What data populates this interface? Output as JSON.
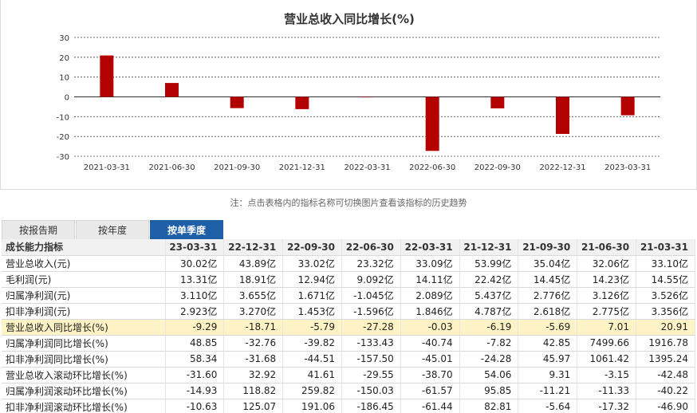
{
  "chart_data": {
    "type": "bar",
    "title": "营业总收入同比增长(%)",
    "categories": [
      "2021-03-31",
      "2021-06-30",
      "2021-09-30",
      "2021-12-31",
      "2022-03-31",
      "2022-06-30",
      "2022-09-30",
      "2022-12-31",
      "2023-03-31"
    ],
    "values": [
      20.91,
      7.01,
      -5.69,
      -6.19,
      -0.03,
      -27.28,
      -5.79,
      -18.71,
      -9.29
    ],
    "ylim": [
      -30,
      30
    ],
    "yticks": [
      30,
      20,
      10,
      0,
      -10,
      -20,
      -30
    ],
    "grid": true,
    "colors": {
      "bar": "#b30000"
    }
  },
  "note": "注：点击表格内的指标名称可切换图片查看该指标的历史趋势",
  "tabs": [
    {
      "label": "按报告期"
    },
    {
      "label": "按年度"
    },
    {
      "label": "按单季度"
    }
  ],
  "table": {
    "header_label": "成长能力指标",
    "columns": [
      "23-03-31",
      "22-12-31",
      "22-09-30",
      "22-06-30",
      "22-03-31",
      "21-12-31",
      "21-09-30",
      "21-06-30",
      "21-03-31"
    ],
    "rows": [
      {
        "label": "营业总收入(元)",
        "values": [
          "30.02亿",
          "43.89亿",
          "33.02亿",
          "23.32亿",
          "33.09亿",
          "53.99亿",
          "35.04亿",
          "32.06亿",
          "33.10亿"
        ]
      },
      {
        "label": "毛利润(元)",
        "values": [
          "13.31亿",
          "18.91亿",
          "12.94亿",
          "9.092亿",
          "14.11亿",
          "22.42亿",
          "14.45亿",
          "14.23亿",
          "14.55亿"
        ]
      },
      {
        "label": "归属净利润(元)",
        "values": [
          "3.110亿",
          "3.655亿",
          "1.671亿",
          "-1.045亿",
          "2.089亿",
          "5.437亿",
          "2.776亿",
          "3.126亿",
          "3.526亿"
        ]
      },
      {
        "label": "扣非净利润(元)",
        "values": [
          "2.923亿",
          "3.270亿",
          "1.453亿",
          "-1.596亿",
          "1.846亿",
          "4.787亿",
          "2.618亿",
          "2.775亿",
          "3.356亿"
        ]
      },
      {
        "label": "营业总收入同比增长(%)",
        "values": [
          "-9.29",
          "-18.71",
          "-5.79",
          "-27.28",
          "-0.03",
          "-6.19",
          "-5.69",
          "7.01",
          "20.91"
        ]
      },
      {
        "label": "归属净利润同比增长(%)",
        "values": [
          "48.85",
          "-32.76",
          "-39.82",
          "-133.43",
          "-40.74",
          "-7.82",
          "42.85",
          "7499.66",
          "1916.78"
        ]
      },
      {
        "label": "扣非净利润同比增长(%)",
        "values": [
          "58.34",
          "-31.68",
          "-44.51",
          "-157.50",
          "-45.01",
          "-24.28",
          "45.97",
          "1061.42",
          "1395.24"
        ]
      },
      {
        "label": "营业总收入滚动环比增长(%)",
        "values": [
          "-31.60",
          "32.92",
          "41.61",
          "-29.55",
          "-38.70",
          "54.06",
          "9.31",
          "-3.15",
          "-42.48"
        ]
      },
      {
        "label": "归属净利润滚动环比增长(%)",
        "values": [
          "-14.93",
          "118.82",
          "259.82",
          "-150.03",
          "-61.57",
          "95.85",
          "-11.21",
          "-11.33",
          "-40.22"
        ]
      },
      {
        "label": "扣非净利润滚动环比增长(%)",
        "values": [
          "-10.63",
          "125.07",
          "191.06",
          "-186.45",
          "-61.44",
          "82.81",
          "-5.64",
          "-17.32",
          "-46.90"
        ]
      }
    ]
  }
}
